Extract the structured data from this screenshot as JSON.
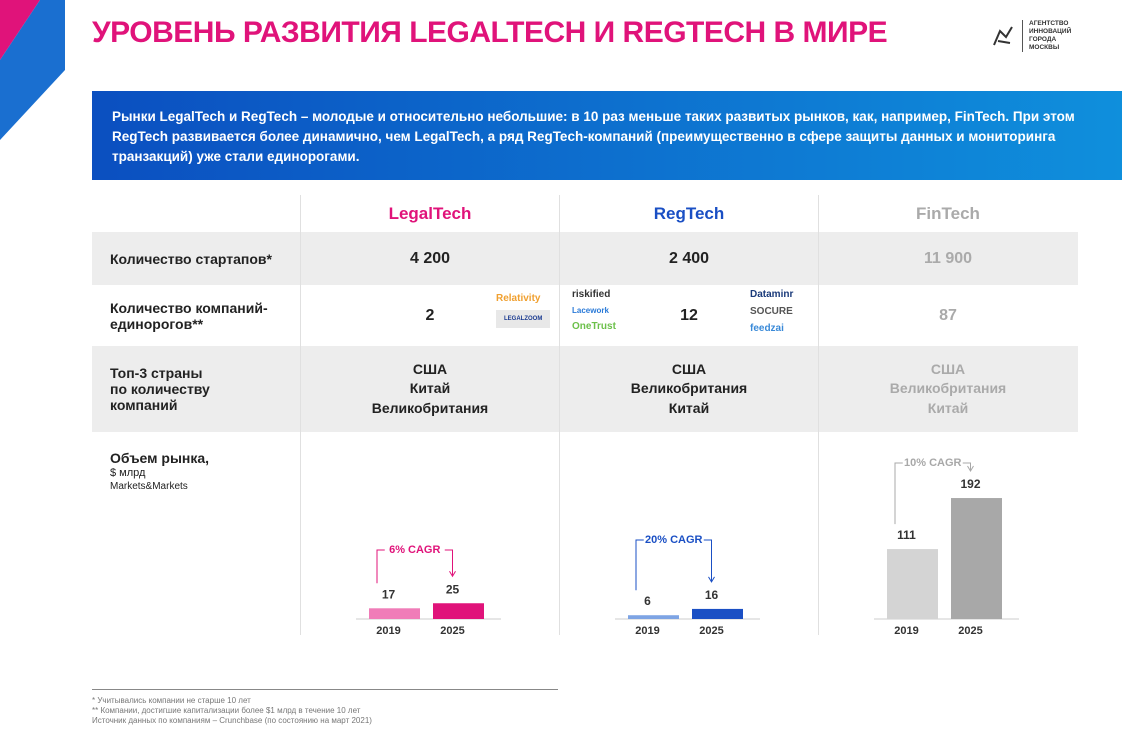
{
  "title": "УРОВЕНЬ РАЗВИТИЯ LEGALTECH И REGTECH В МИРЕ",
  "logo": {
    "line1": "АГЕНТСТВО",
    "line2": "ИННОВАЦИЙ",
    "line3": "ГОРОДА",
    "line4": "МОСКВЫ"
  },
  "banner": "Рынки LegalTech и RegTech – молодые и относительно небольшие: в 10 раз меньше таких развитых рынков, как, например, FinTech. При этом RegTech развивается более динамично, чем LegalTech, а ряд RegTech-компаний (преимущественно в сфере защиты данных и мониторинга транзакций) уже стали единорогами.",
  "columns": [
    "LegalTech",
    "RegTech",
    "FinTech"
  ],
  "colors": {
    "legal": "#e0137a",
    "reg": "#1a4fc4",
    "fin": "#b0b0b0"
  },
  "rows": {
    "startups": {
      "label": "Количество стартапов*",
      "values": [
        "4 200",
        "2 400",
        "11 900"
      ]
    },
    "unicorns": {
      "label": "Количество компаний-единорогов**",
      "values": [
        "2",
        "12",
        "87"
      ],
      "legal_logos": [
        "Relativity",
        "LEGALZOOM"
      ],
      "reg_logos_left": [
        "riskified",
        "Lacework",
        "OneTrust"
      ],
      "reg_logos_right": [
        "Dataminr",
        "SOCURE",
        "feedzai"
      ]
    },
    "countries": {
      "label": "Топ-3 страны по количеству компаний",
      "values": [
        [
          "США",
          "Китай",
          "Великобритания"
        ],
        [
          "США",
          "Великобритания",
          "Китай"
        ],
        [
          "США",
          "Великобритания",
          "Китай"
        ]
      ]
    },
    "market": {
      "label": "Объем рынка,",
      "unit": "$ млрд",
      "source": "Markets&Markets"
    }
  },
  "chart_data": [
    {
      "type": "bar",
      "title": "LegalTech",
      "categories": [
        "2019",
        "2025"
      ],
      "values": [
        17,
        25
      ],
      "annotation": "6% CAGR",
      "colors": [
        "#f07cb8",
        "#e0137a"
      ]
    },
    {
      "type": "bar",
      "title": "RegTech",
      "categories": [
        "2019",
        "2025"
      ],
      "values": [
        6,
        16
      ],
      "annotation": "20% CAGR",
      "colors": [
        "#7ea4e4",
        "#1a4fc4"
      ]
    },
    {
      "type": "bar",
      "title": "FinTech",
      "categories": [
        "2019",
        "2025"
      ],
      "values": [
        111,
        192
      ],
      "annotation": "10% CAGR",
      "colors": [
        "#d4d4d4",
        "#a8a8a8"
      ]
    }
  ],
  "footnotes": [
    "* Учитывались компании не старше 10 лет",
    "** Компании, достигшие капитализации более $1 млрд в течение 10 лет",
    "Источник данных по компаниям – Crunchbase (по состоянию на март 2021)"
  ]
}
